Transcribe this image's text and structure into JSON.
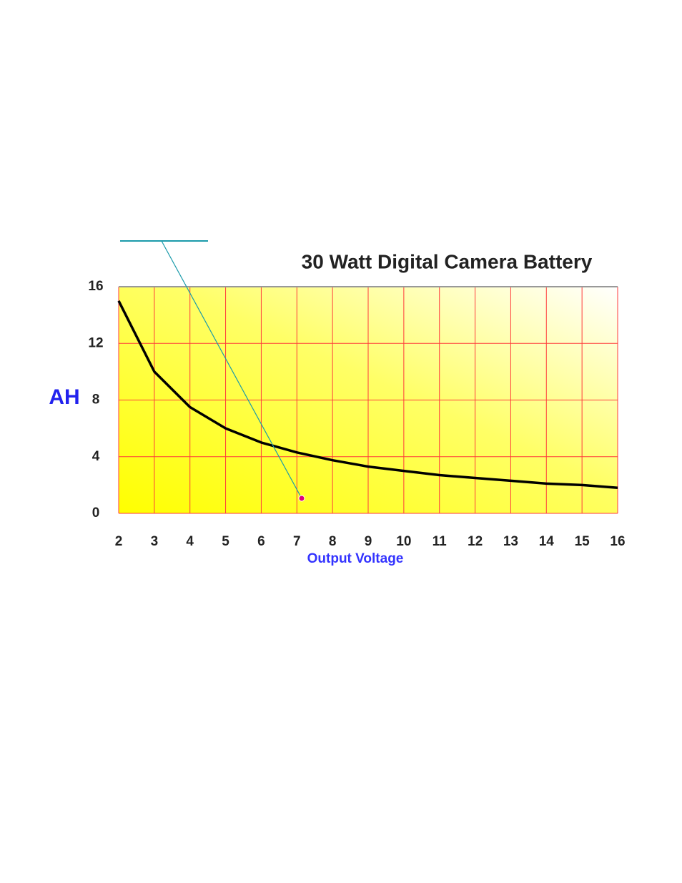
{
  "chart_data": {
    "type": "line",
    "title": "30 Watt Digital Camera Battery",
    "xlabel": "Output Voltage",
    "ylabel": "AH",
    "x": [
      2,
      3,
      4,
      5,
      6,
      7,
      8,
      9,
      10,
      11,
      12,
      13,
      14,
      15,
      16
    ],
    "values": [
      15,
      10,
      7.5,
      6,
      5,
      4.3,
      3.75,
      3.3,
      3,
      2.7,
      2.5,
      2.3,
      2.1,
      2,
      1.8
    ],
    "color": "#000000",
    "xlim": [
      2,
      16
    ],
    "ylim": [
      0,
      16
    ],
    "xticks": [
      2,
      3,
      4,
      5,
      6,
      7,
      8,
      9,
      10,
      11,
      12,
      13,
      14,
      15,
      16
    ],
    "yticks": [
      0,
      4,
      8,
      12,
      16
    ],
    "grid": true,
    "grid_color": "#ff3b3b"
  }
}
